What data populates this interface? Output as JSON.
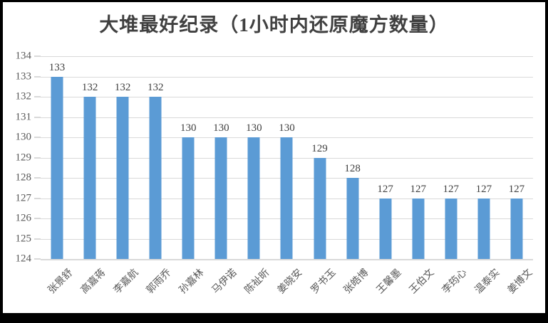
{
  "chart_data": {
    "type": "bar",
    "title": "大堆最好纪录（1小时内还原魔方数量）",
    "categories": [
      "张景舒",
      "高嘉蒋",
      "李嘉航",
      "郭雨乔",
      "孙嘉林",
      "马伊诺",
      "陈祉昕",
      "姜晓安",
      "罗书玉",
      "张皓博",
      "王馨墨",
      "王伯文",
      "李筠心",
      "温泰实",
      "姜博文"
    ],
    "values": [
      133,
      132,
      132,
      132,
      130,
      130,
      130,
      130,
      129,
      128,
      127,
      127,
      127,
      127,
      127
    ],
    "xlabel": "",
    "ylabel": "",
    "ylim": [
      124,
      134
    ],
    "ytick_step": 1,
    "grid": true,
    "legend_position": "none",
    "data_labels": true,
    "bar_color": "#5b9bd5",
    "gridline_color": "#d9d9d9",
    "title_color": "#404040",
    "axis_label_color": "#595959"
  }
}
